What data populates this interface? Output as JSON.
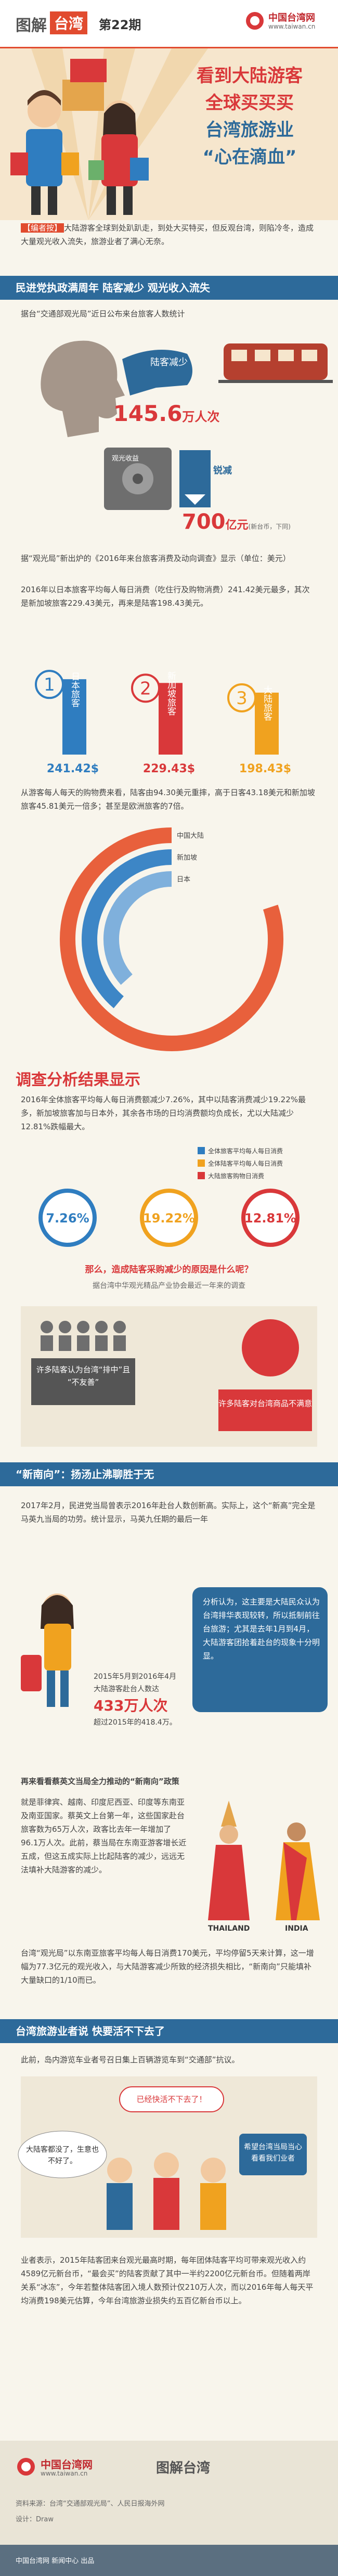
{
  "header": {
    "brand_a": "图解",
    "brand_b": "台湾",
    "issue": "第22期",
    "site": "中国台湾网",
    "url": "www.taiwan.cn"
  },
  "hero": {
    "title_lines": [
      "看到大陆游客",
      "全球买买买",
      "台湾旅游业",
      "“心在滴血”"
    ]
  },
  "intro": {
    "tag": "【编者按】",
    "text": "大陆游客全球到处趴趴走，到处大买特买，但反观台湾，则陷冷冬，造成大量观光收入流失，旅游业者了满心无奈。"
  },
  "section1": {
    "heading": "民进党执政满周年  陆客减少  观光收入流失",
    "source": "据台“交通部观光局”近日公布来台旅客人数统计",
    "reduce_label": "陆客减少",
    "visitors": "145.6",
    "visitors_unit": "万人次",
    "revenue_label": "观光收益",
    "drop_label": "锐减",
    "revenue": "700",
    "revenue_unit": "亿元",
    "revenue_note": "(新台币，下同)",
    "survey": "据“观光局”新出炉的《2016年来台旅客消费及动向调查》显示（单位：美元）",
    "para": "2016年以日本旅客平均每人每日消费（吃住行及购物消费）241.42美元最多，其次是新加坡旅客229.43美元，再来是陆客198.43美元。"
  },
  "spending": {
    "items": [
      {
        "rank": "1",
        "name": "日本旅客",
        "value": 241.42,
        "label": "241.42$",
        "color": "#2f7dc0"
      },
      {
        "rank": "2",
        "name": "新加坡旅客",
        "value": 229.43,
        "label": "229.43$",
        "color": "#d9383a"
      },
      {
        "rank": "3",
        "name": "大陆旅客",
        "value": 198.43,
        "label": "198.43$",
        "color": "#f0a21f"
      }
    ]
  },
  "shopping": {
    "text": "从游客每人每天的购物费来看，陆客由94.30美元重摔，高于日客43.18美元和新加坡旅客45.81美元一倍多；甚至是欧洲旅客的7倍。",
    "items": [
      {
        "name": "中国大陆",
        "value": 94.3,
        "color": "#e8603c"
      },
      {
        "name": "新加坡",
        "value": 45.81,
        "color": "#3d86c6"
      },
      {
        "name": "日本",
        "value": 43.18,
        "color": "#7fb0dc"
      }
    ]
  },
  "results": {
    "heading": "调查分析结果显示",
    "text": "2016年全体旅客平均每人每日消费额减少7.26%，其中以陆客消费减少19.22%最多，新加坡旅客加与日本外，其余各市场的日均消费额均负成长，尤以大陆减少12.81%跌幅最大。",
    "legend": [
      {
        "name": "全体旅客平均每人每日消费",
        "color": "#2f7dc0"
      },
      {
        "name": "全体陆客平均每人每日消费",
        "color": "#f0a21f"
      },
      {
        "name": "大陆旅客购物日消费",
        "color": "#d9383a"
      }
    ],
    "rates": [
      {
        "label": "7.26%",
        "color": "#2f7dc0"
      },
      {
        "label": "19.22%",
        "color": "#f0a21f"
      },
      {
        "label": "12.81%",
        "color": "#d9383a"
      }
    ]
  },
  "reasons": {
    "question": "那么，造成陆客采购减少的原因是什么呢？",
    "source": "据台湾中华观光精品产业协会最近一年来的调查",
    "items": [
      "许多陆客认为台湾“排中”且“不友善”",
      "许多陆客对台湾商品不满意"
    ]
  },
  "section2": {
    "heading": "“新南向”：扬汤止沸聊胜于无",
    "para1": "2017年2月，民进党当局曾表示2016年赴台人数创新高。实际上，这个“新高”完全是马英九当局的功劳。统计显示，马英九任期的最后一年",
    "bubble": "分析认为，这主要是大陆民众认为台湾排华表现较转，所以抵制前往台旅游；尤其是去年1月到4月，大陆游客团拾着赴台的现象十分明显。",
    "stat_period": "2015年5月到2016年4月",
    "stat_label": "大陆游客赴台人数达",
    "stat_value": "433万人次",
    "stat_compare": "超过2015年的418.4万。",
    "policy": "再来看看蔡英文当局全力推动的“新南向”政策",
    "para2": "就是菲律宾、越南、印度尼西亚、印度等东南亚及南亚国家。蔡英文上台第一年，这些国家赴台旅客数为65万人次，政客比去年一年增加了96.1万人次。此前，蔡当局在东南亚游客增长近五成，但这五成实际上比起陆客的减少，远远无法填补大陆游客的减少。",
    "thailand": "THAILAND",
    "india": "INDIA",
    "para3": "台湾“观光局”以东南亚旅客平均每人每日消费170美元，平均停留5天来计算，这一增幅为77.3亿元的观光收入，与大陆游客减少所致的经济损失相比，“新南向”只能填补大量缺口的1/10而已。"
  },
  "section3": {
    "heading": "台湾旅游业者说  快要活不下去了",
    "lead": "此前，岛内游览车业者号召日集上百辆游览车到“交通部”抗议。",
    "bubble1": "已经快活不下去了！",
    "bubble2": "大陆客都没了，生意也不好了。",
    "bubble3": "希望台湾当局当心看看我们业者",
    "para": "业者表示，2015年陆客团来台观光最高时期，每年团体陆客平均可带来观光收入约4589亿元新台币，“最会买”的陆客贡献了其中一半约2200亿元新台币。但随着两岸关系“冰冻”，今年若整体陆客团入境人数预计仅210万人次，而以2016年每人每天平均消费198美元估算，今年台湾旅游业损失约五百亿新台币以上。"
  },
  "footer": {
    "site": "中国台湾网",
    "url": "www.taiwan.cn",
    "brand": "图解台湾",
    "source": "资料来源：台湾“交通部观光局”、人民日报海外网",
    "design": "设计：Draw",
    "credit": "中国台湾网 新闻中心 出品"
  }
}
